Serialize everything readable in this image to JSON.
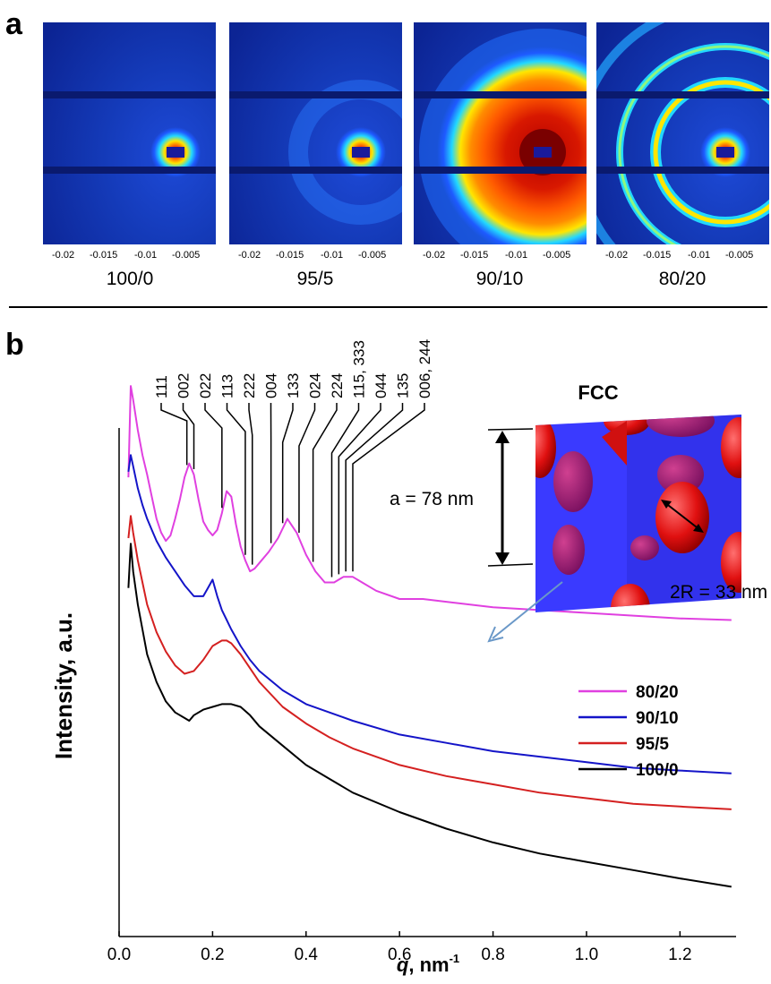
{
  "panel_a": {
    "label": "a",
    "tick_labels": [
      "-0.02",
      "-0.015",
      "-0.01",
      "-0.005"
    ],
    "patterns": [
      {
        "label": "100/0",
        "style": "beamstop-only"
      },
      {
        "label": "95/5",
        "style": "weak-ring"
      },
      {
        "label": "90/10",
        "style": "broad-ring"
      },
      {
        "label": "80/20",
        "style": "sharp-rings"
      }
    ],
    "colormap": [
      "#0a1a8c",
      "#1e5aff",
      "#22d8ff",
      "#ffe600",
      "#ff5a00",
      "#b40000"
    ]
  },
  "panel_b": {
    "label": "b",
    "peak_labels": [
      "111",
      "002",
      "022",
      "113",
      "222",
      "004",
      "133",
      "024",
      "224",
      "115, 333",
      "044",
      "135",
      "006, 244"
    ],
    "peak_positions_q": [
      0.145,
      0.16,
      0.22,
      0.27,
      0.285,
      0.325,
      0.35,
      0.385,
      0.415,
      0.455,
      0.47,
      0.485,
      0.5
    ],
    "inset": {
      "title": "FCC",
      "lattice_text": "a = 78 nm",
      "radius_text": "2R = 33 nm",
      "cube_color": "#3a3aff",
      "sphere_color": "#ff1a1a"
    }
  },
  "chart_data": {
    "type": "line",
    "xlabel": "q, nm",
    "xlabel_italic": "q",
    "xlabel_unit": "nm",
    "xlabel_superscript": "-1",
    "ylabel": "Intensity, a.u.",
    "xlim": [
      0.0,
      1.32
    ],
    "ylim": [
      0.0,
      10.0
    ],
    "x_ticks": [
      "0.0",
      "0.2",
      "0.4",
      "0.6",
      "0.8",
      "1.0",
      "1.2"
    ],
    "x_tick_values": [
      0.0,
      0.2,
      0.4,
      0.6,
      0.8,
      1.0,
      1.2
    ],
    "legend_position": "right",
    "series": [
      {
        "name": "80/20",
        "color": "#e040e0",
        "x": [
          0.02,
          0.025,
          0.03,
          0.04,
          0.05,
          0.06,
          0.07,
          0.08,
          0.09,
          0.1,
          0.11,
          0.12,
          0.13,
          0.14,
          0.15,
          0.16,
          0.17,
          0.18,
          0.19,
          0.2,
          0.21,
          0.22,
          0.23,
          0.24,
          0.25,
          0.26,
          0.27,
          0.28,
          0.29,
          0.3,
          0.32,
          0.34,
          0.36,
          0.38,
          0.4,
          0.42,
          0.44,
          0.46,
          0.48,
          0.5,
          0.52,
          0.55,
          0.6,
          0.65,
          0.7,
          0.8,
          0.9,
          1.0,
          1.1,
          1.2,
          1.31
        ],
        "y": [
          8.3,
          9.95,
          9.7,
          9.15,
          8.7,
          8.35,
          7.95,
          7.55,
          7.3,
          7.15,
          7.25,
          7.55,
          7.9,
          8.3,
          8.55,
          8.35,
          7.9,
          7.5,
          7.35,
          7.25,
          7.35,
          7.65,
          8.05,
          7.95,
          7.45,
          7.05,
          6.8,
          6.6,
          6.65,
          6.75,
          6.95,
          7.2,
          7.55,
          7.3,
          6.9,
          6.6,
          6.4,
          6.4,
          6.5,
          6.5,
          6.4,
          6.25,
          6.1,
          6.1,
          6.05,
          5.95,
          5.9,
          5.85,
          5.8,
          5.75,
          5.72
        ]
      },
      {
        "name": "90/10",
        "color": "#1414c8",
        "x": [
          0.02,
          0.025,
          0.03,
          0.04,
          0.05,
          0.06,
          0.07,
          0.08,
          0.1,
          0.12,
          0.14,
          0.16,
          0.18,
          0.19,
          0.2,
          0.21,
          0.22,
          0.24,
          0.26,
          0.28,
          0.3,
          0.35,
          0.4,
          0.45,
          0.5,
          0.6,
          0.7,
          0.8,
          0.9,
          1.0,
          1.1,
          1.2,
          1.31
        ],
        "y": [
          8.4,
          8.7,
          8.5,
          8.1,
          7.8,
          7.55,
          7.35,
          7.15,
          6.85,
          6.6,
          6.35,
          6.15,
          6.15,
          6.3,
          6.45,
          6.15,
          5.9,
          5.55,
          5.25,
          5.0,
          4.8,
          4.45,
          4.2,
          4.05,
          3.9,
          3.65,
          3.5,
          3.35,
          3.25,
          3.15,
          3.05,
          3.0,
          2.95
        ]
      },
      {
        "name": "95/5",
        "color": "#d42020",
        "x": [
          0.02,
          0.025,
          0.03,
          0.04,
          0.05,
          0.06,
          0.08,
          0.1,
          0.12,
          0.14,
          0.16,
          0.18,
          0.2,
          0.22,
          0.23,
          0.24,
          0.26,
          0.28,
          0.3,
          0.35,
          0.4,
          0.45,
          0.5,
          0.6,
          0.7,
          0.8,
          0.9,
          1.0,
          1.1,
          1.2,
          1.31
        ],
        "y": [
          7.2,
          7.6,
          7.3,
          6.8,
          6.4,
          6.0,
          5.5,
          5.15,
          4.9,
          4.75,
          4.8,
          5.0,
          5.25,
          5.35,
          5.35,
          5.3,
          5.1,
          4.85,
          4.6,
          4.15,
          3.85,
          3.6,
          3.4,
          3.1,
          2.9,
          2.75,
          2.6,
          2.5,
          2.4,
          2.35,
          2.3
        ]
      },
      {
        "name": "100/0",
        "color": "#000000",
        "x": [
          0.02,
          0.025,
          0.03,
          0.04,
          0.05,
          0.06,
          0.08,
          0.1,
          0.12,
          0.14,
          0.15,
          0.16,
          0.18,
          0.2,
          0.22,
          0.24,
          0.26,
          0.28,
          0.3,
          0.35,
          0.4,
          0.45,
          0.5,
          0.6,
          0.7,
          0.8,
          0.9,
          1.0,
          1.1,
          1.2,
          1.31
        ],
        "y": [
          6.3,
          7.1,
          6.6,
          6.0,
          5.55,
          5.1,
          4.6,
          4.25,
          4.05,
          3.95,
          3.9,
          4.0,
          4.1,
          4.15,
          4.2,
          4.2,
          4.15,
          4.0,
          3.8,
          3.45,
          3.1,
          2.85,
          2.6,
          2.25,
          1.95,
          1.7,
          1.5,
          1.35,
          1.2,
          1.05,
          0.9
        ]
      }
    ]
  }
}
